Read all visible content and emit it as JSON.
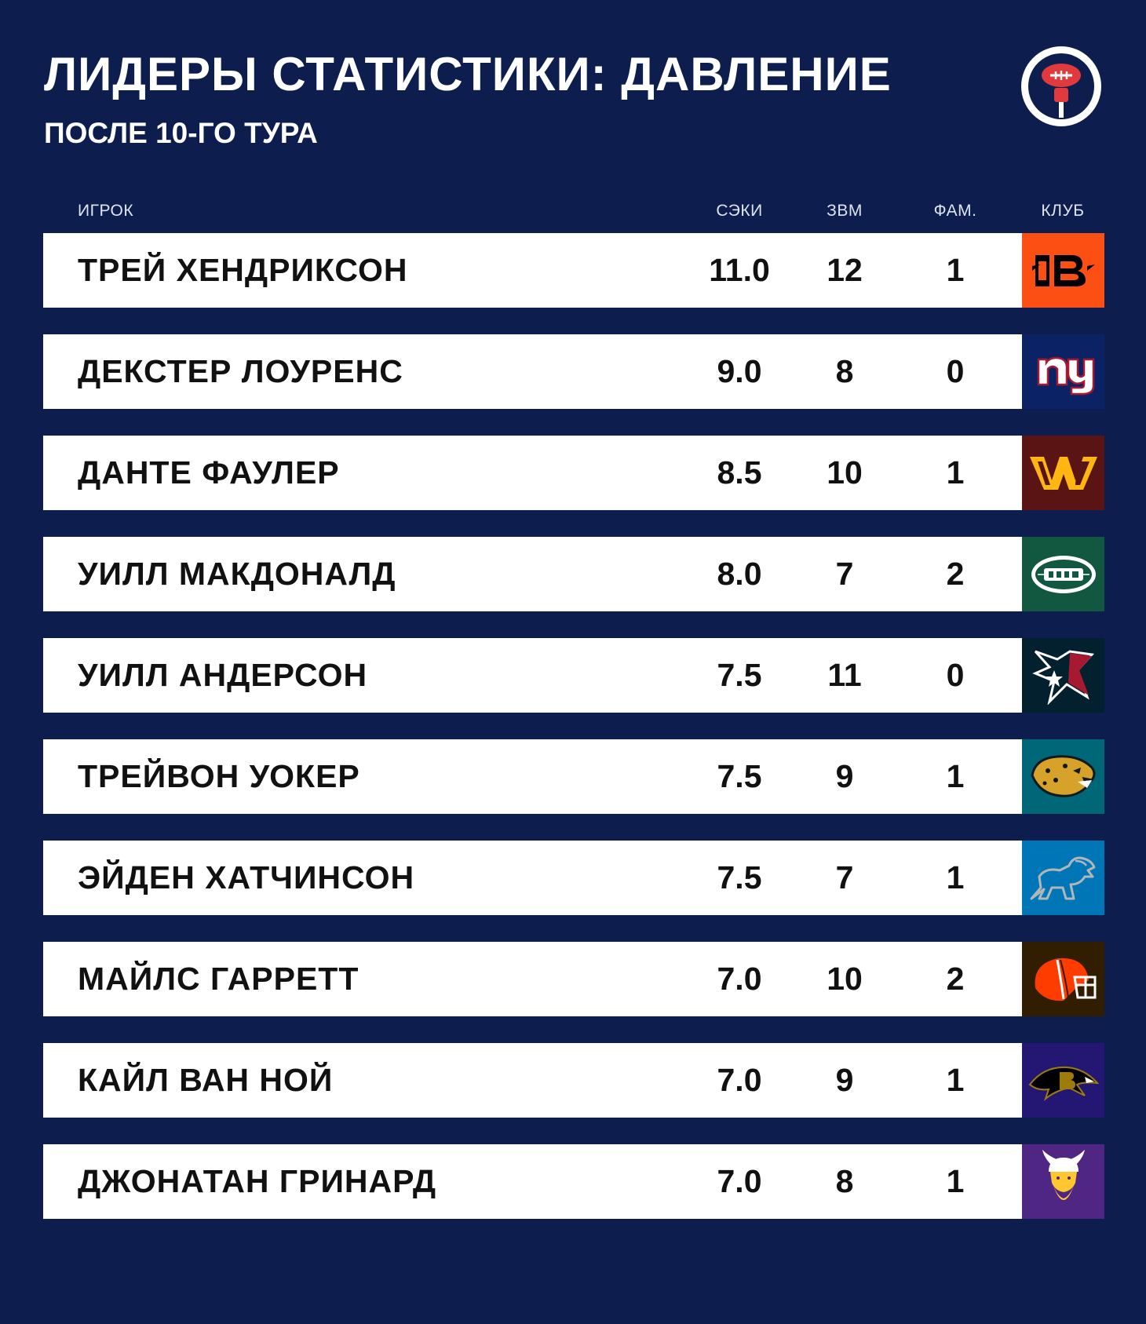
{
  "title": "ЛИДЕРЫ СТАТИСТИКИ: ДАВЛЕНИЕ",
  "subtitle": "ПОСЛЕ 10-ГО ТУРА",
  "brand_icon": "football-microphone-logo",
  "columns": {
    "player": "ИГРОК",
    "sacks": "СЭКИ",
    "qb_hits": "ЗВМ",
    "fumbles": "ФАМ.",
    "club": "КЛУБ"
  },
  "players": [
    {
      "name": "ТРЕЙ ХЕНДРИКСОН",
      "sacks": "11.0",
      "qb_hits": "12",
      "fumbles": "1",
      "team_icon": "bengals-logo-icon",
      "team_color": "#fb4f14"
    },
    {
      "name": "ДЕКСТЕР ЛОУРЕНС",
      "sacks": "9.0",
      "qb_hits": "8",
      "fumbles": "0",
      "team_icon": "giants-logo-icon",
      "team_color": "#0b2265"
    },
    {
      "name": "ДАНТЕ ФАУЛЕР",
      "sacks": "8.5",
      "qb_hits": "10",
      "fumbles": "1",
      "team_icon": "commanders-logo-icon",
      "team_color": "#5a1414"
    },
    {
      "name": "УИЛЛ МАКДОНАЛД",
      "sacks": "8.0",
      "qb_hits": "7",
      "fumbles": "2",
      "team_icon": "jets-logo-icon",
      "team_color": "#125740"
    },
    {
      "name": "УИЛЛ АНДЕРСОН",
      "sacks": "7.5",
      "qb_hits": "11",
      "fumbles": "0",
      "team_icon": "texans-logo-icon",
      "team_color": "#03202f"
    },
    {
      "name": "ТРЕЙВОН УОКЕР",
      "sacks": "7.5",
      "qb_hits": "9",
      "fumbles": "1",
      "team_icon": "jaguars-logo-icon",
      "team_color": "#006778"
    },
    {
      "name": "ЭЙДЕН ХАТЧИНСОН",
      "sacks": "7.5",
      "qb_hits": "7",
      "fumbles": "1",
      "team_icon": "lions-logo-icon",
      "team_color": "#0076b6"
    },
    {
      "name": "МАЙЛС ГАРРЕТТ",
      "sacks": "7.0",
      "qb_hits": "10",
      "fumbles": "2",
      "team_icon": "browns-logo-icon",
      "team_color": "#311d00"
    },
    {
      "name": "КАЙЛ ВАН НОЙ",
      "sacks": "7.0",
      "qb_hits": "9",
      "fumbles": "1",
      "team_icon": "ravens-logo-icon",
      "team_color": "#241773"
    },
    {
      "name": "ДЖОНАТАН ГРИНАРД",
      "sacks": "7.0",
      "qb_hits": "8",
      "fumbles": "1",
      "team_icon": "vikings-logo-icon",
      "team_color": "#4f2683"
    }
  ]
}
